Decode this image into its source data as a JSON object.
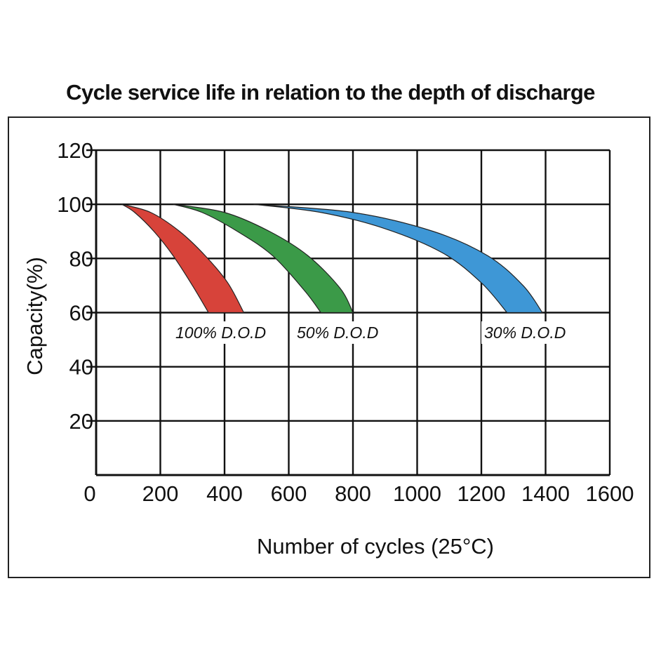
{
  "chart_data": {
    "type": "area",
    "title": "Cycle service life in relation to the depth of discharge",
    "xlabel": "Number of cycles (25°C)",
    "ylabel": "Capacity(%)",
    "xlim": [
      0,
      1600
    ],
    "ylim": [
      0,
      120
    ],
    "x_ticks": [
      "0",
      "200",
      "400",
      "600",
      "800",
      "1000",
      "1200",
      "1400",
      "1600"
    ],
    "y_ticks": [
      "20",
      "40",
      "60",
      "80",
      "100",
      "120"
    ],
    "grid": true,
    "series": [
      {
        "name": "100% D.O.D",
        "color": "#d7433a",
        "start_cycles": 80,
        "lower_bound": {
          "x": [
            80,
            120,
            180,
            240,
            300,
            350
          ],
          "y": [
            100,
            97,
            90,
            81,
            70,
            60
          ]
        },
        "upper_bound": {
          "x": [
            80,
            170,
            260,
            340,
            410,
            460
          ],
          "y": [
            100,
            97,
            90,
            81,
            71,
            60
          ]
        }
      },
      {
        "name": "50% D.O.D",
        "color": "#3b9a48",
        "start_cycles": 240,
        "lower_bound": {
          "x": [
            240,
            330,
            440,
            550,
            650,
            700
          ],
          "y": [
            100,
            97,
            90,
            81,
            68,
            60
          ]
        },
        "upper_bound": {
          "x": [
            240,
            400,
            540,
            660,
            760,
            800
          ],
          "y": [
            100,
            97,
            90,
            81,
            69,
            60
          ]
        }
      },
      {
        "name": "30% D.O.D",
        "color": "#3e97d6",
        "start_cycles": 490,
        "lower_bound": {
          "x": [
            490,
            700,
            900,
            1080,
            1200,
            1280
          ],
          "y": [
            100,
            97,
            91,
            82,
            71,
            60
          ]
        },
        "upper_bound": {
          "x": [
            490,
            800,
            1050,
            1220,
            1330,
            1390
          ],
          "y": [
            100,
            97,
            90,
            81,
            70,
            60
          ]
        }
      }
    ],
    "annotations": [
      "100% D.O.D",
      "50% D.O.D",
      "30% D.O.D"
    ]
  }
}
